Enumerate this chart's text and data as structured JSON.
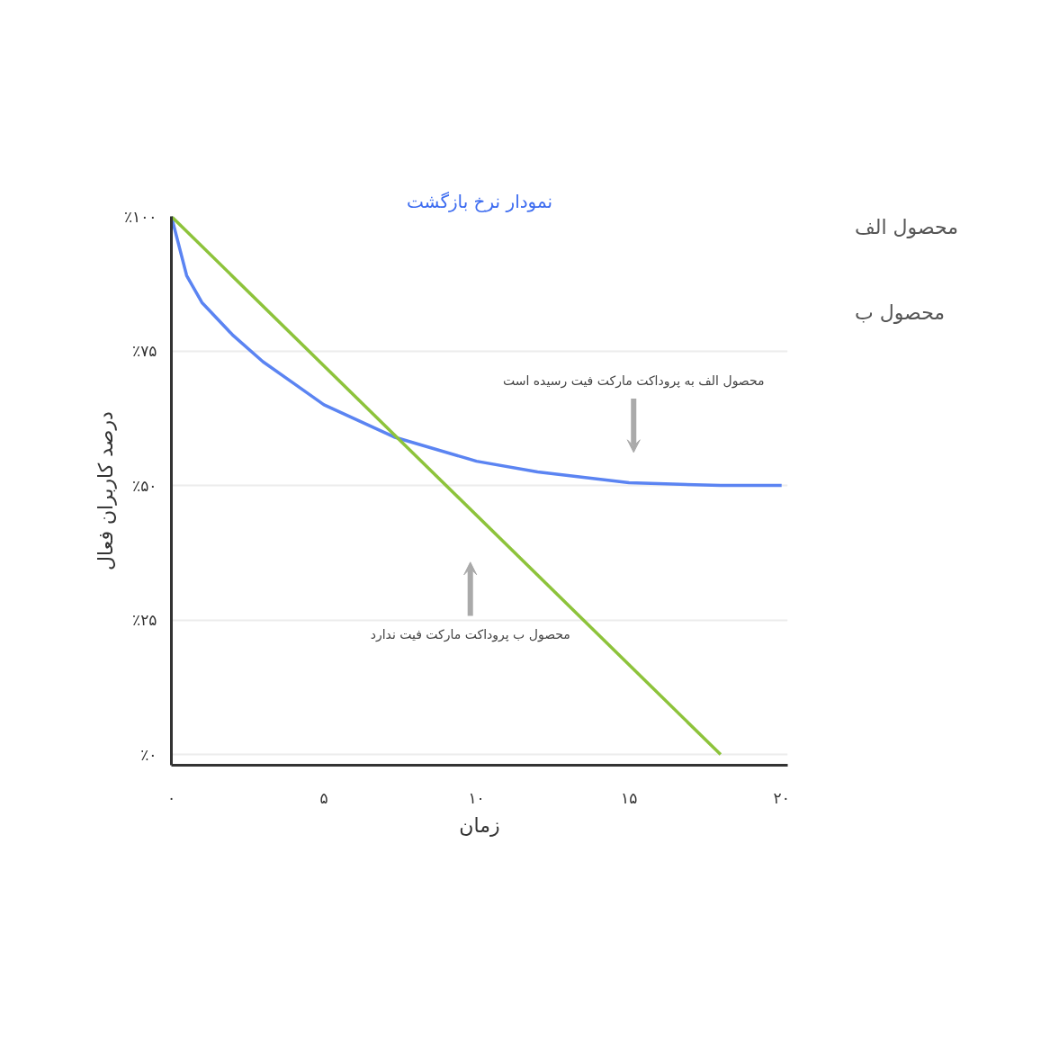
{
  "chart_data": {
    "type": "line",
    "title": "نمودار نرخ بازگشت",
    "xlabel": "زمان",
    "ylabel": "درصد کاربران فعال",
    "x": [
      0,
      0.5,
      1,
      2,
      3,
      4,
      5,
      7.3,
      10,
      12,
      15,
      18,
      20
    ],
    "series": [
      {
        "name": "محصول الف",
        "color": "#5b84f2",
        "values": [
          100,
          89,
          84,
          78,
          73,
          69,
          65,
          59,
          54.5,
          52.5,
          50.5,
          50,
          50
        ]
      },
      {
        "name": "محصول ب",
        "color": "#8dc33b",
        "x": [
          0,
          18
        ],
        "values": [
          100,
          0
        ]
      }
    ],
    "xlim": [
      0,
      20.2
    ],
    "ylim": [
      -2,
      100
    ],
    "xticks": [
      {
        "value": 0,
        "label": "۰"
      },
      {
        "value": 5,
        "label": "۵"
      },
      {
        "value": 10,
        "label": "۱۰"
      },
      {
        "value": 15,
        "label": "۱۵"
      },
      {
        "value": 20,
        "label": "۲۰"
      }
    ],
    "yticks": [
      {
        "value": 0,
        "label": "٪۰"
      },
      {
        "value": 25,
        "label": "٪۲۵"
      },
      {
        "value": 50,
        "label": "٪۵۰"
      },
      {
        "value": 75,
        "label": "٪۷۵"
      },
      {
        "value": 100,
        "label": "٪۱۰۰"
      }
    ],
    "grid": "y",
    "legend": "top right",
    "marker": "none",
    "line_style": "solid",
    "annotations": [
      "محصول الف به پروداکت مارکت فیت رسیده است",
      "محصول ب پروداکت مارکت فیت ندارد"
    ]
  }
}
